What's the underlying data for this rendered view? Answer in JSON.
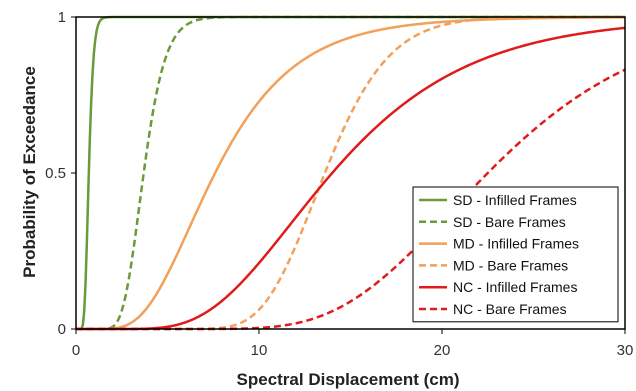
{
  "chart_data": {
    "type": "line",
    "title": "",
    "xlabel": "Spectral Displacement (cm)",
    "ylabel": "Probability of Exceedance",
    "xlim": [
      0,
      30
    ],
    "ylim": [
      0,
      1
    ],
    "x_ticks": [
      "0",
      "10",
      "20",
      "30"
    ],
    "y_ticks": [
      "0",
      "0.5",
      "1"
    ],
    "grid": false,
    "legend_position": "bottom-right",
    "series": [
      {
        "name": "SD - Infilled Frames",
        "color": "#6a9a3a",
        "dash": "solid",
        "median": 0.7,
        "beta": 0.28
      },
      {
        "name": "SD - Bare Frames",
        "color": "#6a9a3a",
        "dash": "dashed",
        "median": 3.7,
        "beta": 0.25
      },
      {
        "name": "MD - Infilled Frames",
        "color": "#f2a05a",
        "dash": "solid",
        "median": 7.6,
        "beta": 0.45
      },
      {
        "name": "MD - Bare Frames",
        "color": "#f2a05a",
        "dash": "dashed",
        "median": 13.6,
        "beta": 0.2
      },
      {
        "name": "NC - Infilled Frames",
        "color": "#e01b1b",
        "dash": "solid",
        "median": 14.0,
        "beta": 0.42
      },
      {
        "name": "NC - Bare Frames",
        "color": "#e01b1b",
        "dash": "dashed",
        "median": 22.5,
        "beta": 0.3
      }
    ]
  }
}
